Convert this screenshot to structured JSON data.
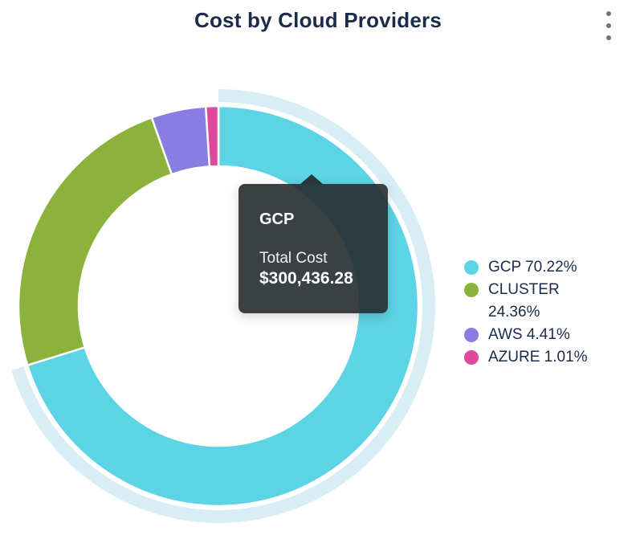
{
  "header": {
    "title": "Cost by Cloud Providers",
    "menu_icon": "kebab-menu"
  },
  "chart_data": {
    "type": "pie",
    "subtype": "donut",
    "title": "Cost by Cloud Providers",
    "direction": "clockwise",
    "start_angle": "top",
    "legend_position": "right",
    "legend_format": "{name} {percent}%",
    "highlight_halo_color": "#d9eef4",
    "segments": [
      {
        "name": "GCP",
        "percent": 70.22,
        "color": "#5dd4e6",
        "highlighted": true
      },
      {
        "name": "CLUSTER",
        "percent": 24.36,
        "color": "#8bb33c",
        "highlighted": false
      },
      {
        "name": "AWS",
        "percent": 4.41,
        "color": "#8a7de2",
        "highlighted": false
      },
      {
        "name": "AZURE",
        "percent": 1.01,
        "color": "#e0489b",
        "highlighted": false
      }
    ]
  },
  "tooltip": {
    "segment": "GCP",
    "label": "Total Cost",
    "value": "$300,436.28"
  },
  "colors": {
    "title_text": "#1b2b4a",
    "legend_text": "#1b2b4a",
    "tooltip_bg": "#282e30",
    "menu_icon": "#6a7380",
    "slice_border": "#ffffff"
  }
}
